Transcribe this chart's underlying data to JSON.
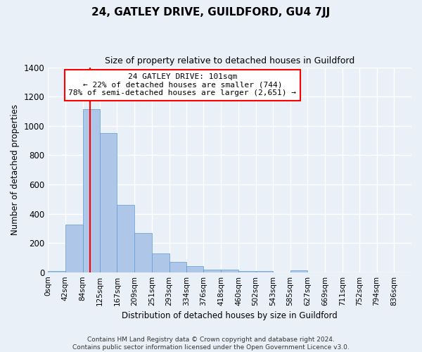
{
  "title": "24, GATLEY DRIVE, GUILDFORD, GU4 7JJ",
  "subtitle": "Size of property relative to detached houses in Guildford",
  "xlabel": "Distribution of detached houses by size in Guildford",
  "ylabel": "Number of detached properties",
  "footer_line1": "Contains HM Land Registry data © Crown copyright and database right 2024.",
  "footer_line2": "Contains public sector information licensed under the Open Government Licence v3.0.",
  "bar_labels": [
    "0sqm",
    "42sqm",
    "84sqm",
    "125sqm",
    "167sqm",
    "209sqm",
    "251sqm",
    "293sqm",
    "334sqm",
    "376sqm",
    "418sqm",
    "460sqm",
    "502sqm",
    "543sqm",
    "585sqm",
    "627sqm",
    "669sqm",
    "711sqm",
    "752sqm",
    "794sqm",
    "836sqm"
  ],
  "counts": [
    8,
    325,
    1115,
    950,
    460,
    270,
    130,
    70,
    40,
    20,
    20,
    10,
    10,
    0,
    12,
    0,
    0,
    0,
    0,
    0,
    0
  ],
  "bar_color": "#aec6e8",
  "bar_edge_color": "#5b9bd5",
  "red_line_x": 101,
  "annotation_title": "24 GATLEY DRIVE: 101sqm",
  "annotation_line1": "← 22% of detached houses are smaller (744)",
  "annotation_line2": "78% of semi-detached houses are larger (2,651) →",
  "annotation_box_color": "white",
  "annotation_border_color": "red",
  "ylim": [
    0,
    1400
  ],
  "yticks": [
    0,
    200,
    400,
    600,
    800,
    1000,
    1200,
    1400
  ],
  "bg_color": "#eaf0f8",
  "plot_bg_color": "#eaf0f8",
  "grid_color": "white"
}
